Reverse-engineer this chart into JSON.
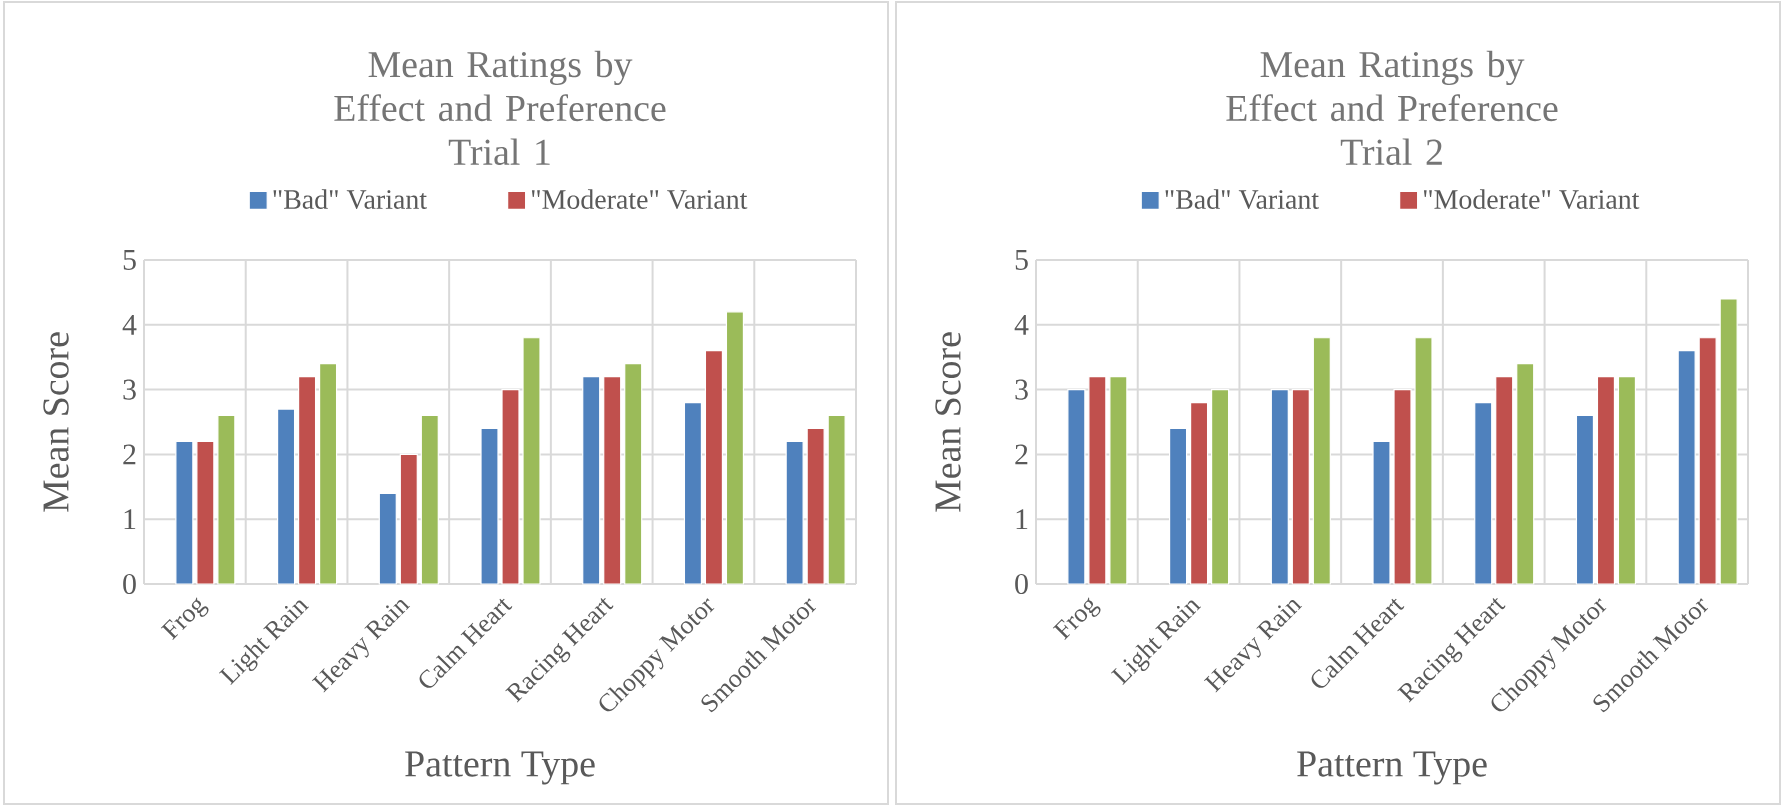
{
  "chart_data": [
    {
      "type": "bar",
      "title": "Mean Ratings by Effect and Preference",
      "subtitle": "Trial 1",
      "xlabel": "Pattern Type",
      "ylabel": "Mean Score",
      "categories": [
        "Frog",
        "Light Rain",
        "Heavy Rain",
        "Calm Heart",
        "Racing Heart",
        "Choppy Motor",
        "Smooth Motor"
      ],
      "series": [
        {
          "name": "\"Bad\" Variant",
          "color": "#4f81bd",
          "values": [
            2.2,
            2.7,
            1.4,
            2.4,
            3.2,
            2.8,
            2.2
          ]
        },
        {
          "name": "\"Moderate\" Variant",
          "color": "#c0504d",
          "values": [
            2.2,
            3.2,
            2.0,
            3.0,
            3.2,
            3.6,
            2.4
          ]
        },
        {
          "color": "#9bbb59",
          "values": [
            2.6,
            3.4,
            2.6,
            3.8,
            3.4,
            4.2,
            2.6
          ]
        }
      ],
      "ylim": [
        0,
        5
      ],
      "yticks": [
        0,
        1,
        2,
        3,
        4,
        5
      ],
      "grid": true,
      "legend": "top"
    },
    {
      "type": "bar",
      "title": "Mean Ratings by Effect and Preference",
      "subtitle": "Trial 2",
      "xlabel": "Pattern Type",
      "ylabel": "Mean Score",
      "categories": [
        "Frog",
        "Light Rain",
        "Heavy Rain",
        "Calm Heart",
        "Racing Heart",
        "Choppy Motor",
        "Smooth Motor"
      ],
      "series": [
        {
          "name": "\"Bad\" Variant",
          "color": "#4f81bd",
          "values": [
            3.0,
            2.4,
            3.0,
            2.2,
            2.8,
            2.6,
            3.6
          ]
        },
        {
          "name": "\"Moderate\" Variant",
          "color": "#c0504d",
          "values": [
            3.2,
            2.8,
            3.0,
            3.0,
            3.2,
            3.2,
            3.8
          ]
        },
        {
          "color": "#9bbb59",
          "values": [
            3.2,
            3.0,
            3.8,
            3.8,
            3.4,
            3.2,
            4.4
          ]
        }
      ],
      "ylim": [
        0,
        5
      ],
      "yticks": [
        0,
        1,
        2,
        3,
        4,
        5
      ],
      "grid": true,
      "legend": "top"
    }
  ]
}
